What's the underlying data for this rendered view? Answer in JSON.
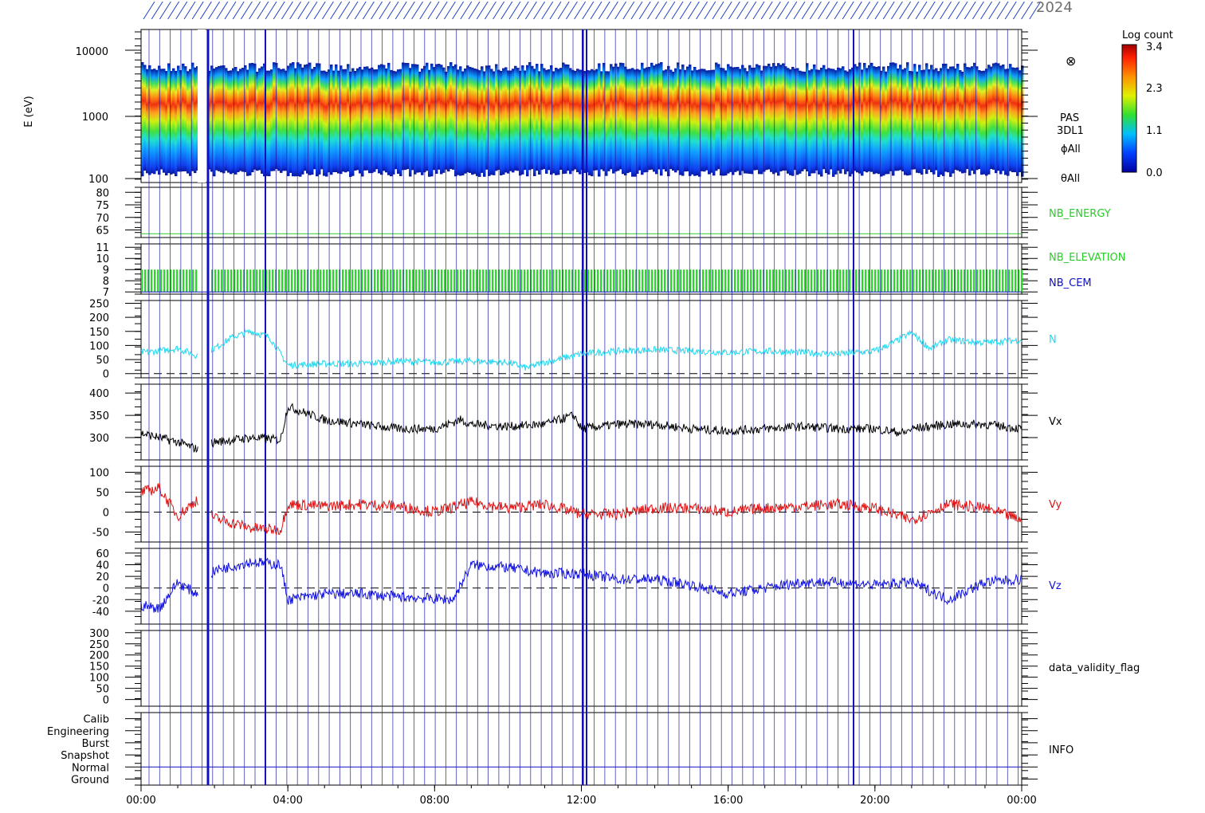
{
  "header": {
    "year_label": "2024"
  },
  "colorbar": {
    "title": "Log count",
    "ticks": [
      "3.4",
      "2.3",
      "1.1",
      "0.0"
    ]
  },
  "panels": {
    "spectrogram": {
      "ylabel": "E (eV)",
      "ticks": [
        "10000",
        "1000",
        "100"
      ],
      "labels": [
        "PAS",
        "3DL1",
        "ϕAll",
        "θAll"
      ],
      "symbol": "⊗"
    },
    "nb_energy": {
      "label": "NB_ENERGY",
      "ticks": [
        "80",
        "75",
        "70",
        "65"
      ],
      "color": "#2ccc2c"
    },
    "nb_elev": {
      "label_top": "NB_ELEVATION",
      "label_bottom": "NB_CEM",
      "ticks": [
        "11",
        "10",
        "9",
        "8",
        "7"
      ],
      "color_top": "#2ccc2c",
      "color_bottom": "#1010c0"
    },
    "n": {
      "label": "N",
      "ticks": [
        "250",
        "200",
        "150",
        "100",
        "50",
        "0"
      ],
      "color": "#22d8ee"
    },
    "vx": {
      "label": "Vx",
      "ticks": [
        "400",
        "350",
        "300"
      ],
      "color": "#000000"
    },
    "vy": {
      "label": "Vy",
      "ticks": [
        "100",
        "50",
        "0",
        "-50"
      ],
      "color": "#e01010"
    },
    "vz": {
      "label": "Vz",
      "ticks": [
        "60",
        "40",
        "20",
        "0",
        "-20",
        "-40"
      ],
      "color": "#1010e0"
    },
    "validity": {
      "label": "data_validity_flag",
      "ticks": [
        "300",
        "250",
        "200",
        "150",
        "100",
        "50",
        "0"
      ]
    },
    "info": {
      "label": "INFO",
      "ticks": [
        "Calib",
        "Engineering",
        "Burst",
        "Snapshot",
        "Normal",
        "Ground"
      ]
    }
  },
  "xaxis": {
    "ticks": [
      "00:00",
      "04:00",
      "08:00",
      "12:00",
      "16:00",
      "20:00",
      "00:00"
    ]
  },
  "chart_data": {
    "type": "line",
    "x_unit": "hour of day",
    "x_range": [
      0,
      24
    ],
    "series": [
      {
        "name": "N",
        "x": [
          0,
          0.5,
          1,
          1.5,
          2,
          2.5,
          3,
          3.5,
          4,
          5,
          6,
          7,
          8,
          9,
          10,
          10.5,
          11,
          12,
          13,
          14,
          15,
          16,
          17,
          18,
          19,
          20,
          20.5,
          21,
          21.5,
          22,
          23,
          24
        ],
        "values": [
          75,
          80,
          90,
          65,
          90,
          130,
          150,
          130,
          30,
          35,
          35,
          45,
          40,
          45,
          40,
          20,
          40,
          70,
          80,
          85,
          80,
          75,
          80,
          75,
          70,
          80,
          110,
          145,
          90,
          120,
          110,
          120
        ]
      },
      {
        "name": "Vx",
        "x": [
          0,
          0.5,
          1,
          1.5,
          2,
          3,
          3.8,
          4,
          4.5,
          5,
          6,
          7,
          8,
          8.7,
          9,
          10,
          11,
          11.8,
          12,
          13,
          14,
          15,
          16,
          17,
          18,
          19,
          20,
          20.8,
          21,
          22,
          23,
          24
        ],
        "values": [
          310,
          300,
          290,
          275,
          290,
          300,
          295,
          370,
          355,
          340,
          330,
          320,
          320,
          340,
          330,
          325,
          330,
          350,
          320,
          330,
          330,
          320,
          315,
          320,
          325,
          320,
          320,
          310,
          320,
          330,
          330,
          320
        ]
      },
      {
        "name": "Vy",
        "x": [
          0,
          0.5,
          1,
          1.5,
          2,
          3,
          3.8,
          4,
          5,
          6,
          7,
          8,
          9,
          10,
          11,
          12,
          13,
          14,
          15,
          16,
          17,
          18,
          19,
          20,
          21,
          22,
          23,
          24
        ],
        "values": [
          50,
          60,
          -10,
          30,
          -15,
          -40,
          -45,
          20,
          15,
          20,
          15,
          0,
          25,
          10,
          20,
          -5,
          -5,
          10,
          10,
          0,
          10,
          15,
          20,
          10,
          -20,
          20,
          10,
          -20
        ]
      },
      {
        "name": "Vz",
        "x": [
          0,
          0.5,
          1,
          1.5,
          2,
          3,
          3.8,
          4,
          4.5,
          5,
          6,
          7,
          8.5,
          9,
          10,
          11,
          12,
          13,
          14,
          15,
          16,
          17,
          18,
          19,
          20,
          21,
          22,
          23,
          24
        ],
        "values": [
          -30,
          -35,
          10,
          -10,
          30,
          45,
          40,
          -20,
          -15,
          -10,
          -10,
          -15,
          -20,
          40,
          35,
          25,
          25,
          15,
          15,
          5,
          -10,
          0,
          10,
          10,
          5,
          10,
          -20,
          10,
          15
        ]
      }
    ],
    "spectrogram": {
      "type": "heatmap",
      "x_range": [
        0,
        24
      ],
      "y_range_eV": [
        100,
        10000
      ],
      "y_scale": "log",
      "peak_energy_eV": 600,
      "colorbar_range": [
        0.0,
        3.4
      ]
    }
  }
}
